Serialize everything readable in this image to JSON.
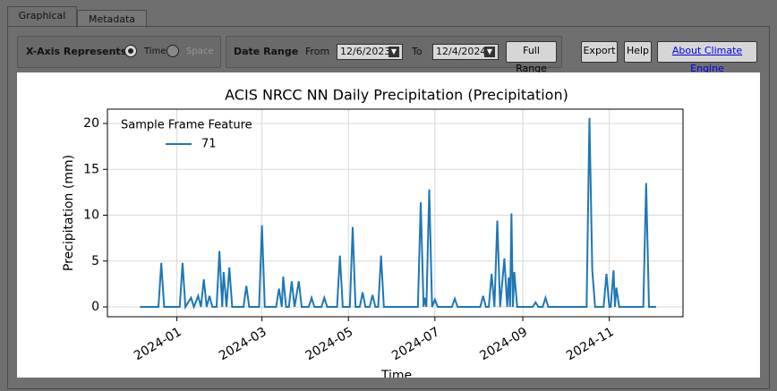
{
  "tabs": [
    "Graphical",
    "Metadata"
  ],
  "controls": {
    "x_axis_label": "X-Axis Represents",
    "x_axis_options": [
      "Time",
      "Space"
    ],
    "date_range_label": "Date Range",
    "from_label": "From",
    "from_value": "12/6/2023",
    "to_label": "To",
    "to_value": "12/4/2024",
    "full_range": "Full Range",
    "export": "Export",
    "help": "Help",
    "about": "About Climate Engine"
  },
  "chart_data": {
    "type": "line",
    "title": "ACIS NRCC NN Daily Precipitation (Precipitation)",
    "xlabel": "Time",
    "ylabel": "Precipitation (mm)",
    "legend_title": "Sample Frame Feature",
    "grid": true,
    "xlim": [
      19674,
      20080
    ],
    "xticks": [
      {
        "value": 19723,
        "label": "2024-01"
      },
      {
        "value": 19783,
        "label": "2024-03"
      },
      {
        "value": 19844,
        "label": "2024-05"
      },
      {
        "value": 19905,
        "label": "2024-07"
      },
      {
        "value": 19967,
        "label": "2024-09"
      },
      {
        "value": 20028,
        "label": "2024-11"
      }
    ],
    "ylim": [
      -1.07,
      21.56
    ],
    "yticks": [
      0,
      5,
      10,
      15,
      20
    ],
    "x": [
      19697,
      19710,
      19712,
      19714,
      19725,
      19727,
      19729,
      19733,
      19735,
      19738,
      19740,
      19742,
      19744,
      19746,
      19748,
      19751,
      19753,
      19755,
      19756,
      19758,
      19760,
      19762,
      19770,
      19772,
      19774,
      19781,
      19783,
      19785,
      19793,
      19795,
      19797,
      19798,
      19800,
      19802,
      19804,
      19806,
      19809,
      19811,
      19816,
      19818,
      19820,
      19825,
      19827,
      19829,
      19836,
      19838,
      19840,
      19845,
      19847,
      19849,
      19852,
      19854,
      19856,
      19859,
      19861,
      19863,
      19865,
      19867,
      19869,
      19893,
      19895,
      19897,
      19898,
      19899,
      19901,
      19903,
      19905,
      19907,
      19917,
      19919,
      19921,
      19937,
      19939,
      19941,
      19943,
      19945,
      19947,
      19949,
      19951,
      19954,
      19956,
      19957,
      19958,
      19959,
      19960,
      19961,
      19963,
      19974,
      19976,
      19978,
      19981,
      19983,
      19985,
      20012,
      20014,
      20016,
      20018,
      20024,
      20026,
      20028,
      20029,
      20031,
      20032,
      20033,
      20035,
      20052,
      20054,
      20056,
      20061
    ],
    "series": [
      {
        "name": "71",
        "color": "#1f77b4",
        "values": [
          0,
          0,
          4.8,
          0,
          0,
          4.8,
          0,
          1.0,
          0,
          1.2,
          0,
          3.0,
          0,
          1.2,
          0,
          0,
          6.1,
          0,
          3.8,
          0,
          4.3,
          0,
          0,
          2.3,
          0,
          0,
          8.9,
          0,
          0,
          2.0,
          0,
          3.3,
          0,
          0,
          2.8,
          0,
          2.8,
          0,
          0,
          1.0,
          0,
          0,
          1.0,
          0,
          0,
          5.6,
          0,
          0,
          8.7,
          0,
          0,
          1.6,
          0,
          0,
          1.3,
          0,
          0,
          5.6,
          0,
          0,
          11.4,
          0,
          1.0,
          0,
          12.8,
          0,
          0.8,
          0,
          0,
          0.9,
          0,
          0,
          1.2,
          0,
          0,
          3.6,
          0,
          9.4,
          0,
          5.3,
          0,
          3.2,
          0,
          10.2,
          0,
          3.8,
          0,
          0,
          0.5,
          0,
          0,
          1.0,
          0,
          0,
          20.6,
          4.0,
          0,
          0,
          3.6,
          0,
          0,
          4.0,
          0,
          2.1,
          0,
          0,
          13.5,
          0,
          0
        ]
      }
    ]
  }
}
